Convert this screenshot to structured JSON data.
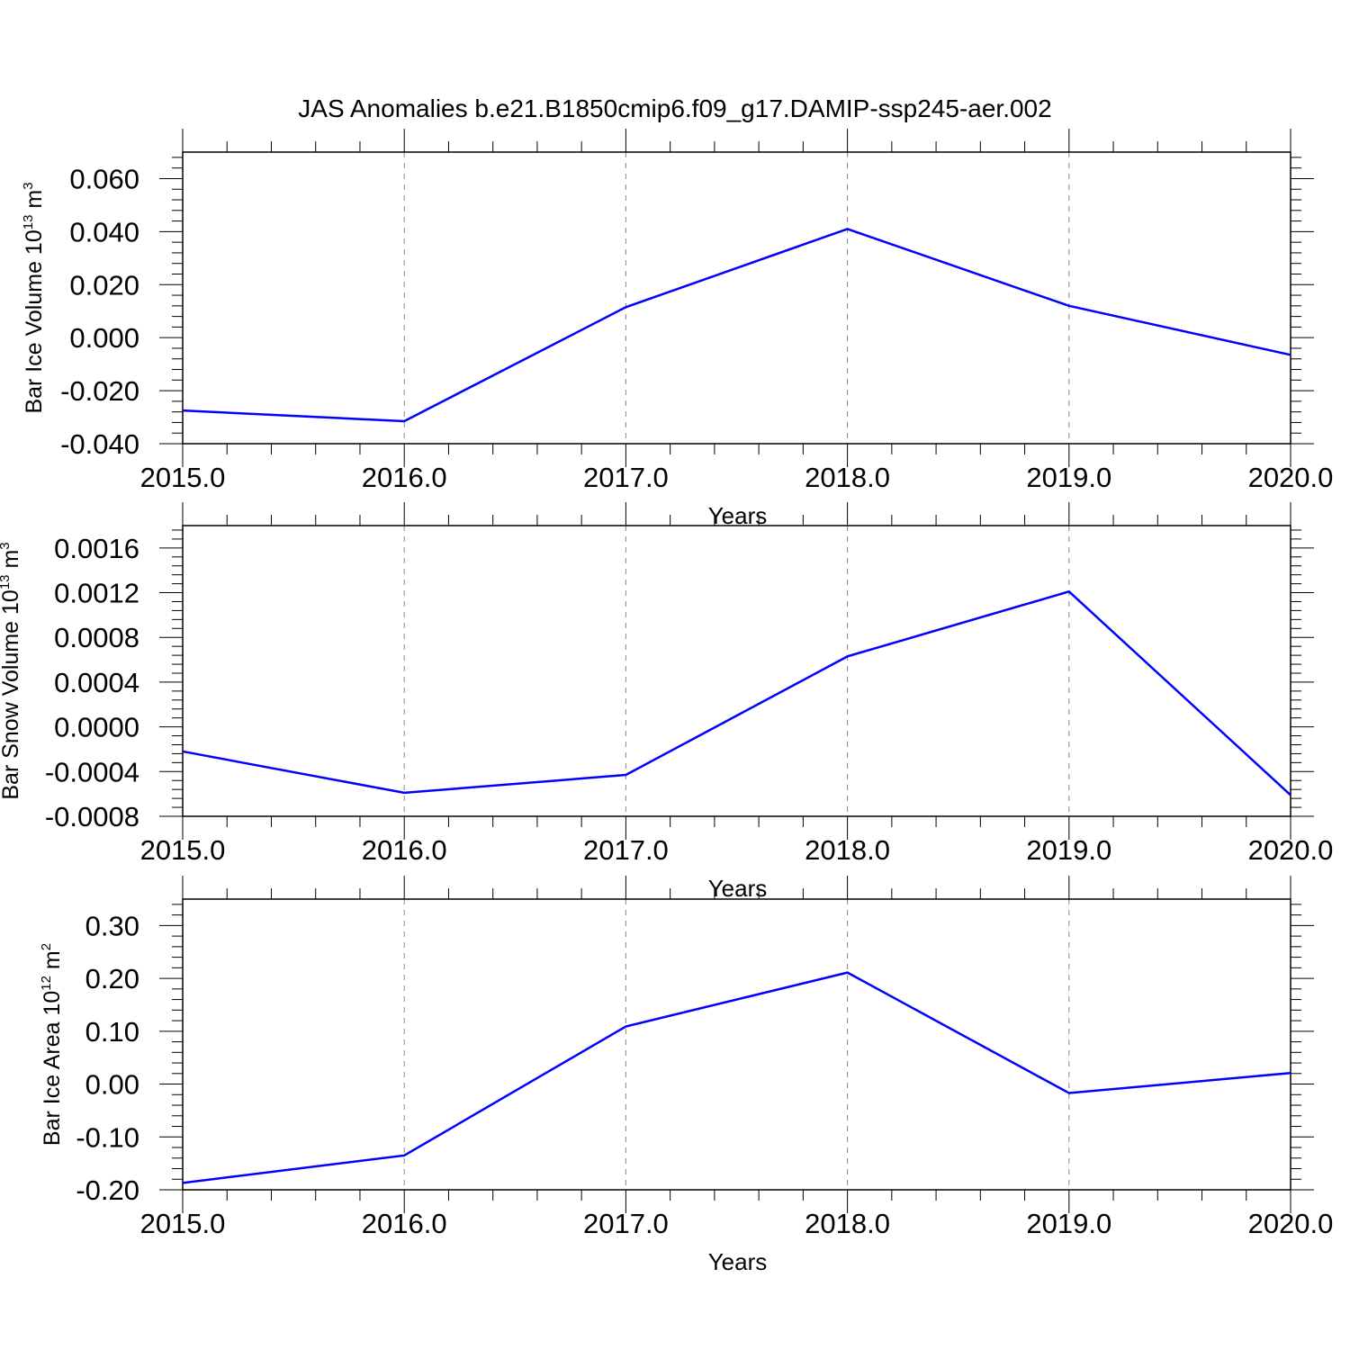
{
  "figure": {
    "title": "JAS Anomalies b.e21.B1850cmip6.f09_g17.DAMIP-ssp245-aer.002"
  },
  "chart_data": [
    {
      "type": "line",
      "x": [
        2015,
        2016,
        2017,
        2018,
        2019,
        2020
      ],
      "xlim": [
        2015,
        2020
      ],
      "xticks": [
        "2015.0",
        "2016.0",
        "2017.0",
        "2018.0",
        "2019.0",
        "2020.0"
      ],
      "xlabel": "Years",
      "ylabel": {
        "prefix": "Bar Ice Volume 10",
        "exp": "13",
        "unit": " m",
        "unit_exp": "3"
      },
      "ylim": [
        -0.04,
        0.07
      ],
      "yticks": [
        -0.04,
        -0.02,
        0.0,
        0.02,
        0.04,
        0.06
      ],
      "ytick_labels": [
        "-0.040",
        "-0.020",
        "0.000",
        "0.020",
        "0.040",
        "0.060"
      ],
      "series": [
        {
          "values": [
            -0.0275,
            -0.0315,
            0.0115,
            0.041,
            0.012,
            -0.0065
          ],
          "color": "#0000ff"
        }
      ],
      "grid": "vertical dashed at major x ticks"
    },
    {
      "type": "line",
      "x": [
        2015,
        2016,
        2017,
        2018,
        2019,
        2020
      ],
      "xlim": [
        2015,
        2020
      ],
      "xticks": [
        "2015.0",
        "2016.0",
        "2017.0",
        "2018.0",
        "2019.0",
        "2020.0"
      ],
      "xlabel": "Years",
      "ylabel": {
        "prefix": "Bar Snow Volume 10",
        "exp": "13",
        "unit": " m",
        "unit_exp": "3"
      },
      "ylim": [
        -0.0008,
        0.0018
      ],
      "yticks": [
        -0.0008,
        -0.0004,
        0.0,
        0.0004,
        0.0008,
        0.0012,
        0.0016
      ],
      "ytick_labels": [
        "-0.0008",
        "-0.0004",
        "0.0000",
        "0.0004",
        "0.0008",
        "0.0012",
        "0.0016"
      ],
      "series": [
        {
          "values": [
            -0.00022,
            -0.00059,
            -0.00043,
            0.00063,
            0.00121,
            -0.00061
          ],
          "color": "#0000ff"
        }
      ],
      "grid": "vertical dashed at major x ticks"
    },
    {
      "type": "line",
      "x": [
        2015,
        2016,
        2017,
        2018,
        2019,
        2020
      ],
      "xlim": [
        2015,
        2020
      ],
      "xticks": [
        "2015.0",
        "2016.0",
        "2017.0",
        "2018.0",
        "2019.0",
        "2020.0"
      ],
      "xlabel": "Years",
      "ylabel": {
        "prefix": "Bar Ice Area 10",
        "exp": "12",
        "unit": " m",
        "unit_exp": "2"
      },
      "ylim": [
        -0.2,
        0.35
      ],
      "yticks": [
        -0.2,
        -0.1,
        0.0,
        0.1,
        0.2,
        0.3
      ],
      "ytick_labels": [
        "-0.20",
        "-0.10",
        "0.00",
        "0.10",
        "0.20",
        "0.30"
      ],
      "series": [
        {
          "values": [
            -0.187,
            -0.135,
            0.109,
            0.211,
            -0.017,
            0.021
          ],
          "color": "#0000ff"
        }
      ],
      "grid": "vertical dashed at major x ticks"
    }
  ]
}
